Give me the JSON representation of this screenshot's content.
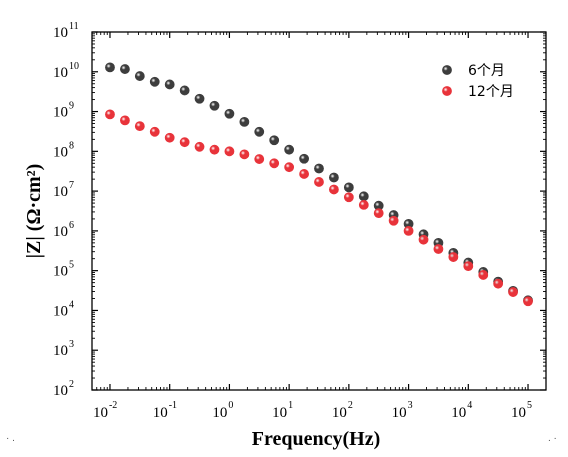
{
  "chart_data": {
    "type": "scatter",
    "title": "",
    "xlabel": "Frequency(Hz)",
    "ylabel": "|Z| (Ω·cm²)",
    "x_scale": "log",
    "y_scale": "log",
    "xlim": [
      0.005,
      200000
    ],
    "ylim": [
      100,
      100000000000
    ],
    "grid": false,
    "legend_position": "top-right",
    "x_ticks": [
      {
        "base": "10",
        "exp": "-2",
        "value": 0.01
      },
      {
        "base": "10",
        "exp": "-1",
        "value": 0.1
      },
      {
        "base": "10",
        "exp": "0",
        "value": 1
      },
      {
        "base": "10",
        "exp": "1",
        "value": 10
      },
      {
        "base": "10",
        "exp": "2",
        "value": 100
      },
      {
        "base": "10",
        "exp": "3",
        "value": 1000
      },
      {
        "base": "10",
        "exp": "4",
        "value": 10000
      },
      {
        "base": "10",
        "exp": "5",
        "value": 100000
      }
    ],
    "y_ticks": [
      {
        "base": "10",
        "exp": "2",
        "value": 100
      },
      {
        "base": "10",
        "exp": "3",
        "value": 1000
      },
      {
        "base": "10",
        "exp": "4",
        "value": 10000
      },
      {
        "base": "10",
        "exp": "5",
        "value": 100000
      },
      {
        "base": "10",
        "exp": "6",
        "value": 1000000
      },
      {
        "base": "10",
        "exp": "7",
        "value": 10000000
      },
      {
        "base": "10",
        "exp": "8",
        "value": 100000000
      },
      {
        "base": "10",
        "exp": "9",
        "value": 1000000000
      },
      {
        "base": "10",
        "exp": "10",
        "value": 10000000000
      },
      {
        "base": "10",
        "exp": "11",
        "value": 100000000000
      }
    ],
    "x": [
      0.01,
      0.0178,
      0.0316,
      0.0562,
      0.1,
      0.178,
      0.316,
      0.562,
      1,
      1.78,
      3.16,
      5.62,
      10,
      17.8,
      31.6,
      56.2,
      100,
      178,
      316,
      562,
      1000,
      1780,
      3160,
      5620,
      10000,
      17800,
      31600,
      56200,
      100000
    ],
    "series": [
      {
        "name": "6个月",
        "color": "#3d3d3d",
        "values": [
          12900000000,
          11700000000,
          7800000000,
          5600000000,
          4800000000,
          3400000000,
          2100000000,
          1400000000,
          880000000,
          550000000,
          310000000,
          190000000,
          110000000,
          65000000,
          37000000,
          22000000,
          12400000,
          7400000,
          4300000,
          2500000,
          1500000,
          820000,
          500000,
          280000,
          160000,
          93000,
          53000,
          31000,
          18000
        ]
      },
      {
        "name": "12个月",
        "color": "#e8333a",
        "values": [
          850000000,
          600000000,
          430000000,
          310000000,
          220000000,
          170000000,
          130000000,
          110000000,
          100000000,
          84000000,
          64000000,
          50000000,
          40000000,
          27000000,
          17000000,
          11000000,
          7000000,
          4500000,
          2800000,
          1800000,
          1000000,
          600000,
          350000,
          220000,
          130000,
          78000,
          47000,
          29000,
          17000
        ]
      }
    ]
  },
  "footer_dots": {
    "left": "· .",
    "right": ". ·"
  }
}
